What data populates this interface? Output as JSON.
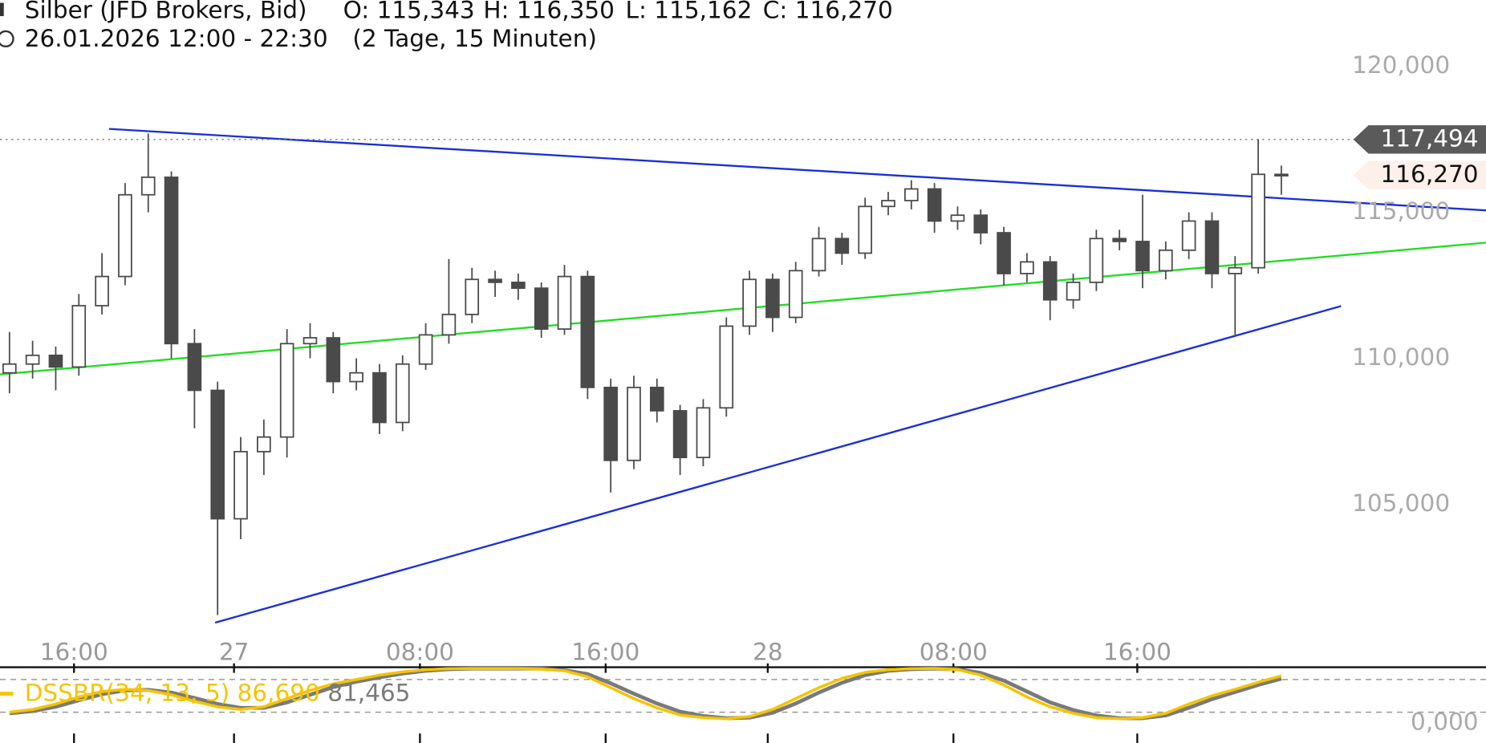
{
  "header": {
    "instrument": "Silber (JFD Brokers, Bid)",
    "open": "O: 115,343",
    "high": "H: 116,350",
    "low": "L: 115,162",
    "close": "C: 116,270",
    "range": "26.01.2026 12:00 - 22:30",
    "period": "(2 Tage, 15 Minuten)"
  },
  "chart_data": [
    {
      "type": "candlestick",
      "open": [
        109.5,
        109.8,
        110.1,
        109.7,
        111.8,
        112.8,
        115.6,
        116.2,
        110.5,
        108.9,
        104.5,
        106.8,
        107.3,
        110.5,
        110.7,
        109.2,
        109.5,
        107.8,
        109.8,
        110.8,
        111.5,
        112.7,
        112.6,
        112.4,
        111.0,
        112.8,
        109.0,
        106.5,
        109.0,
        108.2,
        106.6,
        108.3,
        111.1,
        112.7,
        111.4,
        113.0,
        114.1,
        113.6,
        115.2,
        115.4,
        115.8,
        114.7,
        114.9,
        114.3,
        112.9,
        113.3,
        112.0,
        112.6,
        114.1,
        114.0,
        113.0,
        113.7,
        114.7,
        112.9,
        113.1,
        116.3
      ],
      "high": [
        110.9,
        110.6,
        110.4,
        112.2,
        113.6,
        116.0,
        117.7,
        116.4,
        111.0,
        109.2,
        107.3,
        107.9,
        111.0,
        111.2,
        110.9,
        110.0,
        109.8,
        110.1,
        111.2,
        113.4,
        113.1,
        113.0,
        112.9,
        112.6,
        113.2,
        113.0,
        109.3,
        109.4,
        109.3,
        108.4,
        108.6,
        111.4,
        113.0,
        112.9,
        113.3,
        114.5,
        114.3,
        115.5,
        115.7,
        116.1,
        116.0,
        115.2,
        115.1,
        114.5,
        113.6,
        113.5,
        112.9,
        114.4,
        114.4,
        115.6,
        114.0,
        115.0,
        115.0,
        113.5,
        117.5,
        116.6
      ],
      "low": [
        108.8,
        109.3,
        108.9,
        109.4,
        111.5,
        112.5,
        115.0,
        110.0,
        107.6,
        101.2,
        103.8,
        106.0,
        106.6,
        110.0,
        108.8,
        108.9,
        107.4,
        107.5,
        109.6,
        110.5,
        111.2,
        112.1,
        112.0,
        110.7,
        110.8,
        108.6,
        105.4,
        106.2,
        107.8,
        106.0,
        106.3,
        108.0,
        110.8,
        110.9,
        111.2,
        112.8,
        113.2,
        113.4,
        114.9,
        115.1,
        114.3,
        114.4,
        113.9,
        112.5,
        112.6,
        111.3,
        111.7,
        112.3,
        113.7,
        112.4,
        112.7,
        113.4,
        112.4,
        110.8,
        112.9,
        115.6
      ],
      "close": [
        109.8,
        110.1,
        109.7,
        111.8,
        112.8,
        115.6,
        116.2,
        110.5,
        108.9,
        104.5,
        106.8,
        107.3,
        110.5,
        110.7,
        109.2,
        109.5,
        107.8,
        109.8,
        110.8,
        111.5,
        112.7,
        112.6,
        112.4,
        111.0,
        112.8,
        109.0,
        106.5,
        109.0,
        108.2,
        106.6,
        108.3,
        111.1,
        112.7,
        111.4,
        113.0,
        114.1,
        113.6,
        115.2,
        115.4,
        115.8,
        114.7,
        114.9,
        114.3,
        112.9,
        113.3,
        112.0,
        112.6,
        114.1,
        114.0,
        113.0,
        113.7,
        114.7,
        112.9,
        113.1,
        116.3,
        116.27
      ],
      "up_color": "#ffffff",
      "down_color": "#4a4a4a",
      "outline_color": "#4a4a4a",
      "ylim": [
        100,
        122
      ],
      "yticks": [
        {
          "value": 105,
          "label": "105,000"
        },
        {
          "value": 110,
          "label": "110,000"
        },
        {
          "value": 115,
          "label": "115,000"
        },
        {
          "value": 120,
          "label": "120,000"
        }
      ],
      "xlim": [
        -0.41,
        63.85
      ],
      "xticks": [
        {
          "value": 2.79,
          "label": "16:00"
        },
        {
          "value": 9.71,
          "label": "27"
        },
        {
          "value": 17.75,
          "label": "08:00"
        },
        {
          "value": 25.78,
          "label": "16:00"
        },
        {
          "value": 32.79,
          "label": "28"
        },
        {
          "value": 40.82,
          "label": "08:00"
        },
        {
          "value": 48.77,
          "label": "16:00"
        }
      ],
      "price_markers": [
        {
          "value": 117.494,
          "label": "117,494",
          "color": "#5a5a5a"
        },
        {
          "value": 116.27,
          "label": "116,270",
          "color": "#fdf0ea"
        }
      ]
    },
    {
      "type": "line",
      "label": "DSSBR(34, 13, 5)",
      "readout": [
        "86,690",
        "81,465"
      ],
      "series": [
        {
          "color": "#f5c400",
          "values": [
            20,
            25,
            35,
            48,
            58,
            62,
            60,
            52,
            40,
            30,
            25,
            30,
            45,
            60,
            72,
            80,
            88,
            94,
            98,
            100,
            100,
            100,
            100,
            99,
            96,
            85,
            65,
            45,
            28,
            15,
            10,
            8,
            12,
            25,
            45,
            65,
            82,
            93,
            98,
            100,
            100,
            98,
            88,
            70,
            48,
            30,
            18,
            10,
            8,
            10,
            18,
            35,
            50,
            62,
            75,
            86.69
          ]
        },
        {
          "color": "#7a7a7a",
          "values": [
            18,
            22,
            30,
            42,
            53,
            60,
            61,
            56,
            46,
            35,
            28,
            28,
            38,
            52,
            66,
            76,
            84,
            91,
            96,
            99,
            100,
            100,
            100,
            100,
            97,
            90,
            73,
            54,
            36,
            21,
            13,
            9,
            10,
            19,
            36,
            56,
            74,
            88,
            96,
            99,
            100,
            99,
            92,
            78,
            58,
            38,
            24,
            14,
            9,
            9,
            14,
            28,
            44,
            57,
            70,
            81.465
          ]
        }
      ],
      "ylim": [
        0,
        100
      ],
      "yticks": [
        {
          "value": 0,
          "label": "0,000"
        }
      ],
      "levels": [
        20,
        80
      ]
    }
  ]
}
